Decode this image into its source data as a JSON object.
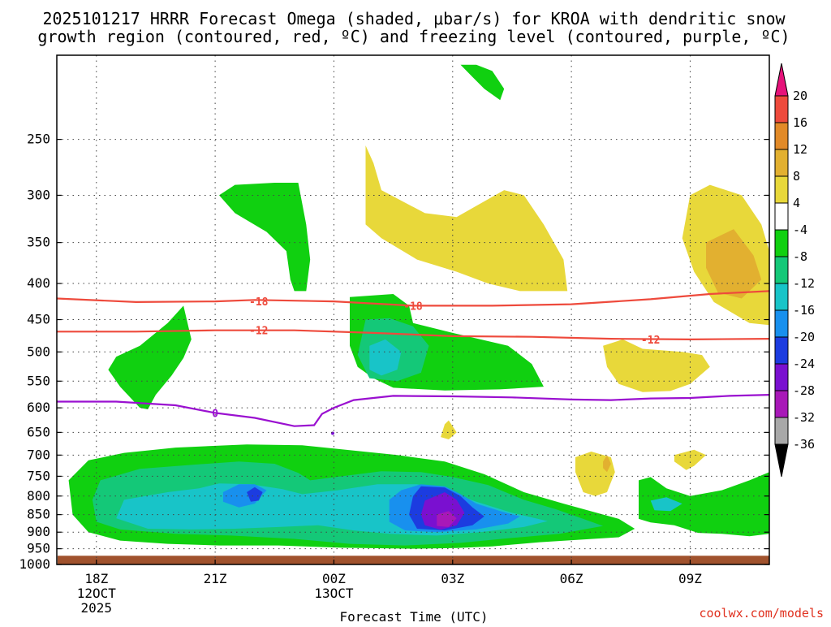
{
  "title": {
    "line1": "2025101217 HRRR Forecast Omega (shaded, μbar/s) for KROA with dendritic snow",
    "line2": "growth region (contoured, red, ºC) and freezing level (contoured, purple, ºC)"
  },
  "credit": "coolwx.com/models",
  "colors": {
    "positive": [
      "#ffffff",
      "#e8d83a",
      "#e2b030",
      "#e28a28",
      "#ee4a3c"
    ],
    "positive_top": "#e6127a",
    "negative": [
      "#10d010",
      "#14c878",
      "#18c4c8",
      "#1890ee",
      "#1c3ce0",
      "#7a10d0",
      "#a818b8",
      "#a8a8a8"
    ],
    "negative_bottom": "#000000",
    "ground": "#a0522d",
    "dgz_contour": "#ee4a3c",
    "freezing_contour": "#9a10d0"
  },
  "chart_data": {
    "type": "time-height",
    "xlabel": "Forecast Time (UTC)",
    "ylabel": "",
    "x_ticks": [
      {
        "time": "18Z",
        "date": "12OCT",
        "year": "2025"
      },
      {
        "time": "21Z",
        "date": "",
        "year": ""
      },
      {
        "time": "00Z",
        "date": "13OCT",
        "year": ""
      },
      {
        "time": "03Z",
        "date": "",
        "year": ""
      },
      {
        "time": "06Z",
        "date": "",
        "year": ""
      },
      {
        "time": "09Z",
        "date": "",
        "year": ""
      }
    ],
    "x_range_hours": [
      17.0,
      35.0
    ],
    "y_ticks_hpa": [
      250,
      300,
      350,
      400,
      450,
      500,
      550,
      600,
      650,
      700,
      750,
      800,
      850,
      900,
      950,
      1000
    ],
    "y_range_hpa": [
      1000,
      190
    ],
    "grid": true,
    "colorbar": {
      "unit": "μbar/s",
      "labels": [
        "20",
        "16",
        "12",
        "8",
        "4",
        "-4",
        "-8",
        "-12",
        "-16",
        "-20",
        "-24",
        "-28",
        "-32",
        "-36"
      ]
    },
    "contours": [
      {
        "label": "-18",
        "color": "red",
        "points": [
          [
            17.0,
            420
          ],
          [
            19,
            425
          ],
          [
            21,
            424
          ],
          [
            22,
            422
          ],
          [
            24,
            424
          ],
          [
            26,
            430
          ],
          [
            28,
            430
          ],
          [
            30,
            428
          ],
          [
            32,
            421
          ],
          [
            33.5,
            414
          ],
          [
            35,
            410
          ]
        ]
      },
      {
        "label": "-12",
        "color": "red",
        "points": [
          [
            17.0,
            468
          ],
          [
            19,
            468
          ],
          [
            21,
            466
          ],
          [
            23,
            466
          ],
          [
            25,
            470
          ],
          [
            27,
            475
          ],
          [
            29,
            476
          ],
          [
            31,
            479
          ],
          [
            33,
            480
          ],
          [
            35,
            479
          ]
        ]
      },
      {
        "label": "0",
        "color": "purple",
        "points": [
          [
            17.0,
            588
          ],
          [
            18.5,
            588
          ],
          [
            20,
            595
          ],
          [
            21,
            610
          ],
          [
            22,
            620
          ],
          [
            23,
            637
          ],
          [
            23.5,
            635
          ],
          [
            23.7,
            612
          ],
          [
            24,
            600
          ],
          [
            24.5,
            585
          ],
          [
            25.5,
            577
          ],
          [
            27,
            578
          ],
          [
            28.5,
            580
          ],
          [
            30,
            584
          ],
          [
            31,
            585
          ],
          [
            32,
            582
          ],
          [
            33,
            581
          ],
          [
            34,
            577
          ],
          [
            35,
            575
          ]
        ]
      }
    ],
    "omega_features": [
      {
        "category": "-8 to -4",
        "feature": "upper green cells 240-415 hPa and 430-560 hPa"
      },
      {
        "category": "4 to 8",
        "feature": "yellow ascent-free areas 255-410 hPa, 490-570 hPa"
      },
      {
        "category": "8 to 12",
        "feature": "orange core near 09Z-10Z around 350-380 hPa"
      },
      {
        "category": "-32 to -28",
        "feature": "strongest lift core near 02Z around 850 hPa"
      }
    ]
  }
}
